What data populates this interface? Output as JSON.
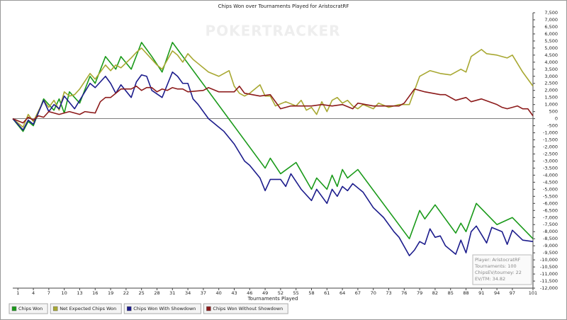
{
  "chart_data": {
    "type": "line",
    "title": "Chips Won over Tournaments Played for AristocratRF",
    "x_label": "Tournaments Played",
    "watermark": "POKERTRACKER",
    "xlim": [
      0,
      101
    ],
    "xticks": [
      1,
      4,
      7,
      10,
      13,
      16,
      19,
      22,
      25,
      28,
      31,
      34,
      37,
      40,
      43,
      46,
      49,
      52,
      55,
      58,
      61,
      64,
      67,
      70,
      73,
      76,
      79,
      82,
      85,
      88,
      91,
      94,
      97,
      101
    ],
    "ylim": [
      -12000,
      7500
    ],
    "yticks": [
      {
        "value": -12000,
        "label": "-12,000"
      },
      {
        "value": -11500,
        "label": "-11,500"
      },
      {
        "value": -11000,
        "label": "-11,000"
      },
      {
        "value": -10500,
        "label": "-10,500"
      },
      {
        "value": -10000,
        "label": "-10,000"
      },
      {
        "value": -9500,
        "label": "-9,500"
      },
      {
        "value": -9000,
        "label": "-9,000"
      },
      {
        "value": -8500,
        "label": "-8,500"
      },
      {
        "value": -8000,
        "label": "-8,000"
      },
      {
        "value": -7500,
        "label": "-7,500"
      },
      {
        "value": -7000,
        "label": "-7,000"
      },
      {
        "value": -6500,
        "label": "-6,500"
      },
      {
        "value": -6000,
        "label": "-6,000"
      },
      {
        "value": -5500,
        "label": "-5,500"
      },
      {
        "value": -5000,
        "label": "-5,000"
      },
      {
        "value": -4500,
        "label": "-4,500"
      },
      {
        "value": -4000,
        "label": "-4,000"
      },
      {
        "value": -3500,
        "label": "-3,500"
      },
      {
        "value": -3000,
        "label": "-3,000"
      },
      {
        "value": -2500,
        "label": "-2,500"
      },
      {
        "value": -2000,
        "label": "-2,000"
      },
      {
        "value": -1500,
        "label": "-1,500"
      },
      {
        "value": -1000,
        "label": "-1,000"
      },
      -500,
      0,
      500,
      {
        "value": 1000,
        "label": "1,000"
      },
      {
        "value": 1500,
        "label": "1,500"
      },
      {
        "value": 2000,
        "label": "2,000"
      },
      {
        "value": 2500,
        "label": "2,500"
      },
      {
        "value": 3000,
        "label": "3,000"
      },
      {
        "value": 3500,
        "label": "3,500"
      },
      {
        "value": 4000,
        "label": "4,000"
      },
      {
        "value": 4500,
        "label": "4,500"
      },
      {
        "value": 5000,
        "label": "5,000"
      },
      {
        "value": 5500,
        "label": "5,500"
      },
      {
        "value": 6000,
        "label": "6,000"
      },
      {
        "value": 6500,
        "label": "6,500"
      },
      {
        "value": 7000,
        "label": "7,000"
      },
      {
        "value": 7500,
        "label": "7,500"
      }
    ],
    "series": [
      {
        "name": "Chips Won",
        "color": "#1a9a1a",
        "x": [
          0,
          2,
          3,
          4,
          6,
          8,
          9,
          10,
          11,
          13,
          15,
          16,
          18,
          20,
          21,
          23,
          25,
          27,
          29,
          31,
          49,
          50,
          52,
          55,
          58,
          59,
          61,
          62,
          63,
          64,
          65,
          67,
          77,
          79,
          80,
          82,
          86,
          87,
          88,
          90,
          94,
          97,
          101
        ],
        "values": [
          0,
          -900,
          -200,
          -500,
          1400,
          600,
          1400,
          400,
          1900,
          1100,
          3000,
          2500,
          4400,
          3500,
          4400,
          3500,
          5400,
          4400,
          3300,
          5400,
          -3500,
          -2800,
          -3900,
          -3100,
          -5000,
          -4200,
          -5000,
          -4000,
          -4800,
          -3600,
          -4200,
          -3600,
          -8500,
          -6500,
          -7100,
          -6100,
          -8100,
          -7400,
          -8000,
          -6000,
          -7500,
          -7000,
          -8500
        ]
      },
      {
        "name": "Net Expected Chips Won",
        "color": "#a8a832",
        "x": [
          0,
          2,
          3,
          4,
          6,
          7,
          8,
          9,
          10,
          11,
          12,
          13,
          15,
          16,
          18,
          19,
          20,
          21,
          23,
          24,
          25,
          26,
          27,
          28,
          29,
          31,
          32,
          33,
          34,
          35,
          36,
          38,
          40,
          42,
          43,
          44,
          45,
          46,
          47,
          48,
          49,
          50,
          51,
          53,
          55,
          56,
          57,
          58,
          59,
          60,
          61,
          62,
          63,
          64,
          65,
          66,
          67,
          68,
          70,
          71,
          73,
          75,
          77,
          79,
          81,
          83,
          85,
          87,
          88,
          89,
          91,
          92,
          94,
          96,
          97,
          99,
          101
        ],
        "values": [
          0,
          -600,
          300,
          -200,
          1300,
          800,
          1300,
          600,
          1900,
          1600,
          1700,
          2100,
          3200,
          2800,
          3800,
          3400,
          3800,
          3600,
          4300,
          4700,
          5000,
          4600,
          4200,
          3800,
          3500,
          4800,
          4500,
          4000,
          4600,
          4200,
          3900,
          3300,
          3000,
          3400,
          2300,
          1800,
          1600,
          1800,
          2100,
          2400,
          1600,
          1600,
          900,
          1200,
          900,
          1300,
          600,
          800,
          300,
          1200,
          500,
          1300,
          1500,
          1100,
          1300,
          900,
          700,
          1000,
          700,
          1100,
          800,
          1000,
          1000,
          3000,
          3400,
          3200,
          3100,
          3500,
          3300,
          4400,
          4900,
          4600,
          4500,
          4300,
          4500,
          3300,
          2300
        ]
      },
      {
        "name": "Chips Won With Showdown",
        "color": "#1c1c8c",
        "x": [
          0,
          2,
          3,
          4,
          6,
          7,
          8,
          9,
          10,
          12,
          15,
          16,
          18,
          19,
          20,
          21,
          23,
          24,
          25,
          26,
          27,
          29,
          31,
          32,
          33,
          34,
          35,
          36,
          38,
          40,
          41,
          43,
          45,
          46,
          48,
          49,
          50,
          52,
          53,
          54,
          56,
          58,
          59,
          61,
          62,
          63,
          64,
          65,
          66,
          68,
          70,
          72,
          74,
          75,
          77,
          78,
          79,
          80,
          81,
          82,
          83,
          84,
          86,
          87,
          88,
          89,
          90,
          91,
          92,
          93,
          95,
          96,
          97,
          99,
          101
        ],
        "values": [
          0,
          -800,
          -100,
          -400,
          1300,
          500,
          1000,
          700,
          1600,
          700,
          2500,
          2200,
          3000,
          2500,
          1800,
          2400,
          1500,
          2600,
          3100,
          3000,
          2000,
          1500,
          3300,
          3000,
          2500,
          2500,
          1400,
          1000,
          0,
          -600,
          -900,
          -1800,
          -3000,
          -3300,
          -4200,
          -5100,
          -4300,
          -4300,
          -4800,
          -3900,
          -5000,
          -5800,
          -5000,
          -6000,
          -5000,
          -5500,
          -4800,
          -5100,
          -4600,
          -5200,
          -6300,
          -7000,
          -8000,
          -8400,
          -9700,
          -9300,
          -8700,
          -8900,
          -7800,
          -8400,
          -8300,
          -9000,
          -9600,
          -8600,
          -9500,
          -8000,
          -7600,
          -8200,
          -8800,
          -7700,
          -8000,
          -8900,
          -7900,
          -8600,
          -8700
        ]
      },
      {
        "name": "Chips Won Without Showdown",
        "color": "#8c1a1a",
        "x": [
          0,
          2,
          3,
          4,
          5,
          6,
          7,
          9,
          11,
          13,
          14,
          16,
          17,
          18,
          19,
          20,
          21,
          23,
          24,
          25,
          26,
          27,
          28,
          29,
          30,
          31,
          32,
          33,
          34,
          37,
          38,
          40,
          43,
          44,
          45,
          48,
          50,
          52,
          54,
          58,
          60,
          62,
          64,
          66,
          67,
          70,
          73,
          75,
          76,
          78,
          80,
          83,
          84,
          86,
          88,
          89,
          91,
          94,
          95,
          96,
          97,
          98,
          99,
          100,
          101
        ],
        "values": [
          0,
          -300,
          100,
          -100,
          200,
          100,
          500,
          300,
          500,
          300,
          500,
          400,
          1200,
          1500,
          1500,
          1800,
          2100,
          2100,
          2300,
          2000,
          2200,
          2200,
          1900,
          2100,
          2000,
          2200,
          2100,
          2100,
          1900,
          2000,
          2200,
          1900,
          1900,
          2300,
          1800,
          1600,
          1700,
          700,
          900,
          900,
          1000,
          900,
          1000,
          700,
          1100,
          900,
          900,
          900,
          1100,
          2100,
          1900,
          1700,
          1700,
          1300,
          1500,
          1200,
          1400,
          1000,
          800,
          700,
          800,
          900,
          700,
          700,
          200
        ]
      }
    ],
    "info": [
      "Player: AristocratRF",
      "Tournaments: 100",
      "ChipsEV/tourney: 22",
      "EV/TM: 34.82"
    ]
  }
}
